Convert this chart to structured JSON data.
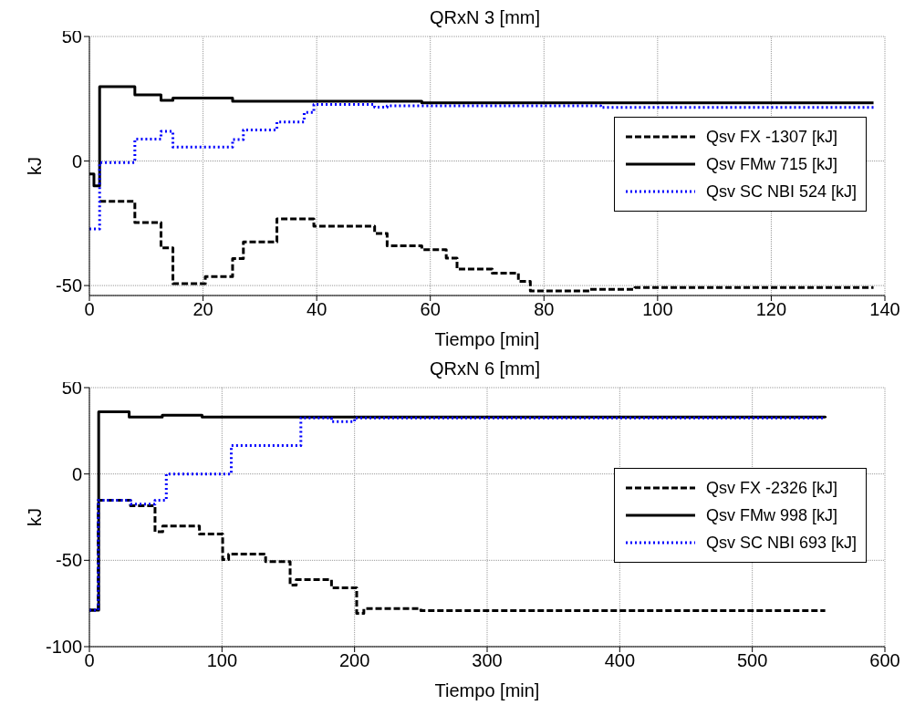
{
  "chart_data": [
    {
      "type": "step",
      "title": "QRxN 3 [mm]",
      "xlabel": "Tiempo [min]",
      "ylabel": "kJ",
      "xlim": [
        0,
        140
      ],
      "xticks": [
        0,
        20,
        40,
        60,
        80,
        100,
        120,
        140
      ],
      "ylim": [
        -54,
        50
      ],
      "yticks": [
        -50,
        0,
        50
      ],
      "grid": true,
      "legend": "right",
      "marker": "none",
      "series": [
        {
          "name": "Qsv FX -1307 [kJ]",
          "color": "#000000",
          "line_style": "dashed",
          "x": [
            1.8,
            8,
            12.6,
            14.7,
            20.4,
            25.2,
            27.1,
            33,
            39.5,
            50.2,
            52.4,
            58.5,
            62.8,
            64.7,
            70.9,
            75.5,
            77.6,
            88,
            96,
            138
          ],
          "values": [
            -16.2,
            -24.7,
            -34.9,
            -49.2,
            -46.4,
            -39.2,
            -32.5,
            -23.2,
            -26.2,
            -29.1,
            -34,
            -35.6,
            -39,
            -43.4,
            -45,
            -48.3,
            -52.2,
            -51.5,
            -50.8,
            -50.8
          ]
        },
        {
          "name": "Qsv FMw 715 [kJ]",
          "color": "#000000",
          "line_style": "solid",
          "x": [
            0,
            0.8,
            1.8,
            8,
            12.6,
            14.7,
            25.2,
            58.5,
            138
          ],
          "values": [
            -5.2,
            -10,
            29.9,
            26.6,
            24.4,
            25.3,
            24,
            23.4,
            23.4
          ]
        },
        {
          "name": "Qsv SC NBI 524 [kJ]",
          "color": "#0000ff",
          "line_style": "dotted",
          "x": [
            0,
            1.8,
            8,
            12.6,
            14.7,
            25.2,
            27.1,
            33,
            37.8,
            39.5,
            50.2,
            52.4,
            90,
            138
          ],
          "values": [
            -27.3,
            -0.6,
            8.8,
            11.9,
            5.6,
            8.6,
            12.5,
            15.7,
            19.5,
            22.7,
            21.6,
            22.2,
            21.5,
            21.5
          ]
        }
      ]
    },
    {
      "type": "step",
      "title": "QRxN 6 [mm]",
      "xlabel": "Tiempo [min]",
      "ylabel": "kJ",
      "xlim": [
        0,
        600
      ],
      "xticks": [
        0,
        100,
        200,
        300,
        400,
        500,
        600
      ],
      "ylim": [
        -100,
        50
      ],
      "yticks": [
        -100,
        -50,
        0,
        50
      ],
      "grid": true,
      "legend": "right",
      "marker": "none",
      "series": [
        {
          "name": "Qsv FX -2326 [kJ]",
          "color": "#000000",
          "line_style": "dashed",
          "x": [
            0,
            6.7,
            31,
            49.5,
            55.3,
            83,
            100.5,
            105,
            132.9,
            151.4,
            156,
            182.6,
            201.6,
            207,
            250,
            555
          ],
          "values": [
            -78.9,
            -15.2,
            -18.4,
            -33.4,
            -30.1,
            -34.8,
            -49.6,
            -46.4,
            -50.7,
            -64.4,
            -61.2,
            -65.9,
            -80.7,
            -78,
            -79.2,
            -79.2
          ]
        },
        {
          "name": "Qsv FMw 998 [kJ]",
          "color": "#000000",
          "line_style": "solid",
          "x": [
            0,
            7,
            30,
            55,
            85,
            555
          ],
          "values": [
            -78.9,
            36,
            33,
            34,
            33,
            32.5
          ]
        },
        {
          "name": "Qsv SC NBI 693 [kJ]",
          "color": "#0000ff",
          "line_style": "dotted",
          "x": [
            0,
            6.7,
            31,
            49.5,
            58,
            107,
            159.5,
            182.6,
            200,
            555
          ],
          "values": [
            -78.9,
            -15.2,
            -17.5,
            -15.2,
            0,
            16.4,
            32.5,
            30.3,
            32.5,
            32.5
          ]
        }
      ]
    }
  ]
}
